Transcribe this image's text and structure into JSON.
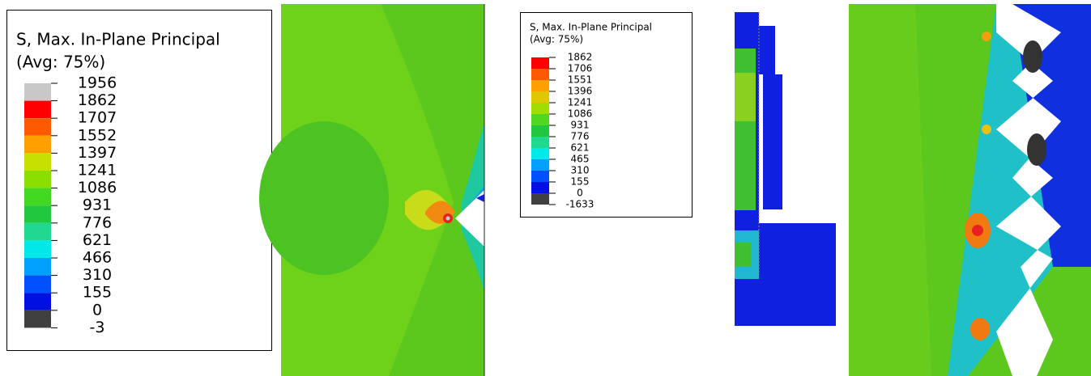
{
  "legends": [
    {
      "title": [
        "S, Max. In-Plane Principal",
        "(Avg: 75%)"
      ],
      "labels": [
        1956,
        1862,
        1707,
        1552,
        1397,
        1241,
        1086,
        931,
        776,
        621,
        466,
        310,
        155,
        0,
        -3
      ]
    },
    {
      "title": [
        "S, Max. In-Plane Principal",
        "(Avg: 75%)"
      ],
      "labels": [
        1862,
        1706,
        1551,
        1396,
        1241,
        1086,
        931,
        776,
        621,
        465,
        310,
        155,
        0,
        -1633
      ]
    }
  ]
}
